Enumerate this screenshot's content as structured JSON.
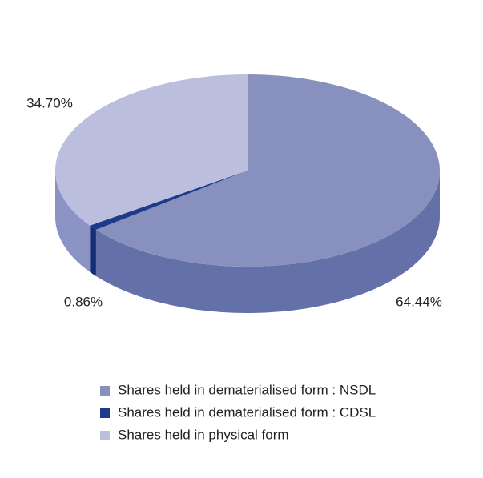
{
  "chart_data": {
    "type": "pie",
    "categories": [
      "Shares held in dematerialised form : NSDL",
      "Shares held in dematerialised form : CDSL",
      "Shares held in physical form"
    ],
    "values": [
      64.44,
      0.86,
      34.7
    ],
    "value_labels": [
      "64.44%",
      "0.86%",
      "34.70%"
    ],
    "colors": [
      "#8890be",
      "#1e3a8a",
      "#bbbedc"
    ],
    "side_colors": [
      "#6470a8",
      "#152d75",
      "#8a93c4"
    ],
    "legend": "bottom"
  }
}
